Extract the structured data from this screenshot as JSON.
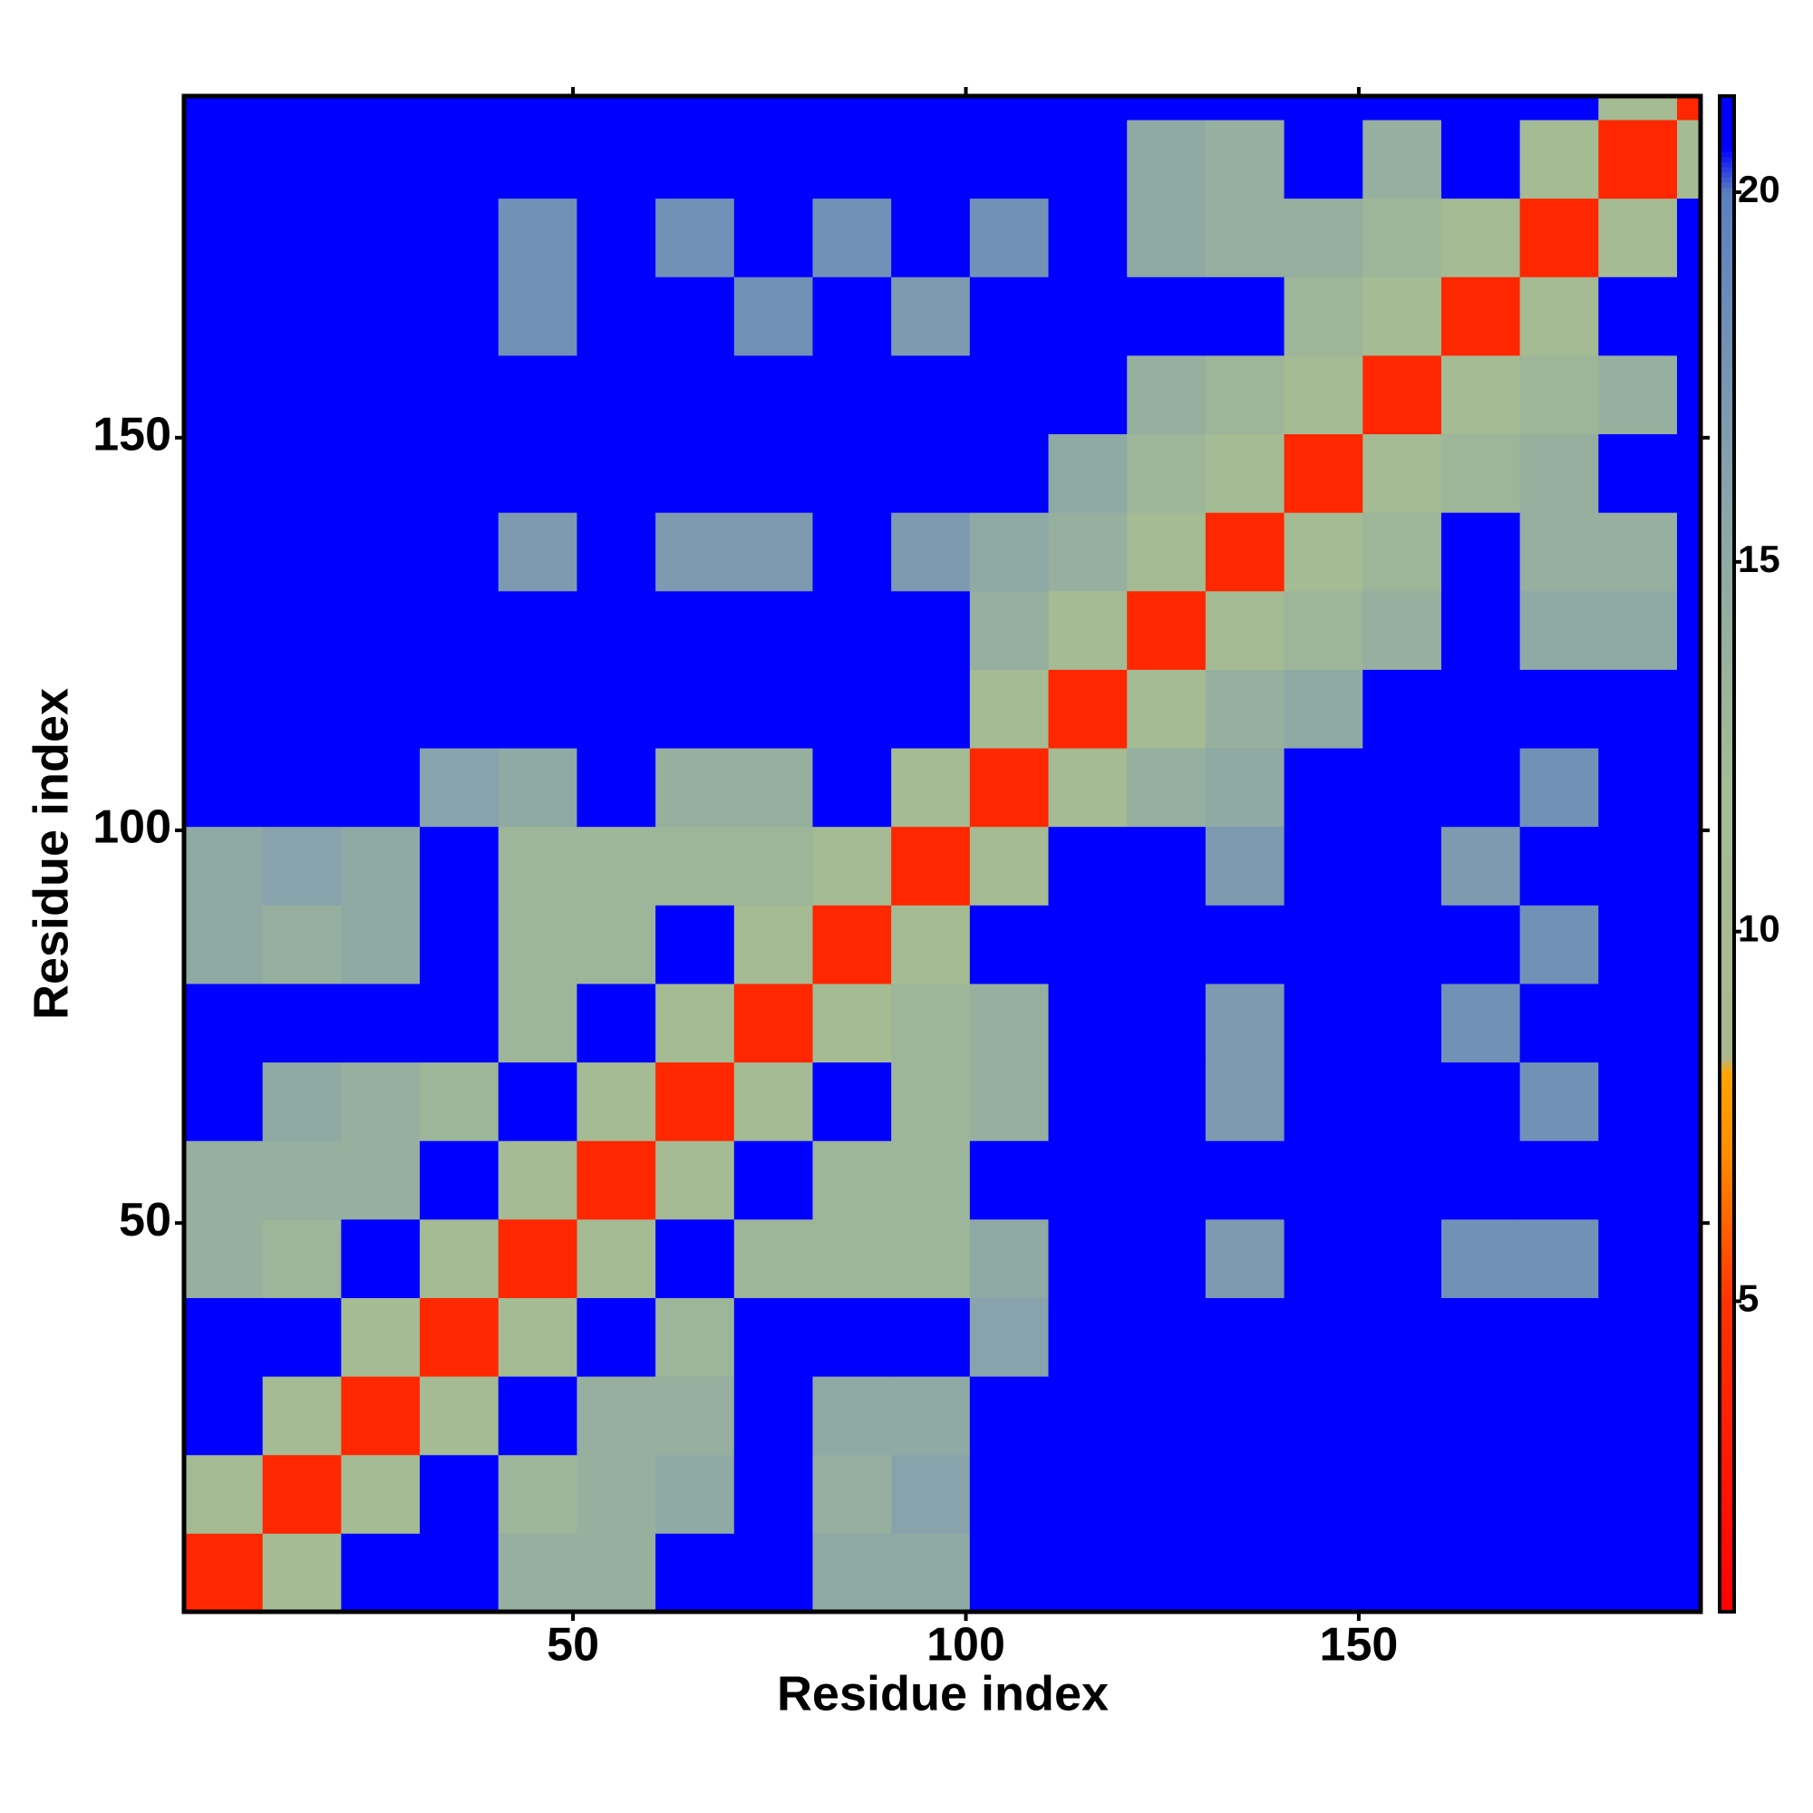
{
  "chart_data": {
    "type": "heatmap",
    "xlabel": "Residue index",
    "ylabel": "Residue index",
    "x_edges": [
      0.5,
      10.5,
      20.5,
      30.5,
      40.5,
      50.5,
      60.5,
      70.5,
      80.5,
      90.5,
      100.5,
      110.5,
      120.5,
      130.5,
      140.5,
      150.5,
      160.5,
      170.5,
      180.5,
      190.5,
      193.5
    ],
    "y_edges": [
      0.5,
      10.5,
      20.5,
      30.5,
      40.5,
      50.5,
      60.5,
      70.5,
      80.5,
      90.5,
      100.5,
      110.5,
      120.5,
      130.5,
      140.5,
      150.5,
      160.5,
      170.5,
      180.5,
      190.5,
      193.5
    ],
    "z": [
      [
        4,
        12,
        21,
        21,
        14,
        14,
        21,
        21,
        15,
        15,
        21,
        21,
        21,
        21,
        21,
        21,
        21,
        21,
        21,
        21
      ],
      [
        12,
        4,
        12,
        21,
        13,
        14,
        15,
        21,
        14,
        16,
        21,
        21,
        21,
        21,
        21,
        21,
        21,
        21,
        21,
        21
      ],
      [
        21,
        12,
        4,
        12,
        21,
        14,
        14,
        21,
        15,
        15,
        21,
        21,
        21,
        21,
        21,
        21,
        21,
        21,
        21,
        21
      ],
      [
        21,
        21,
        12,
        4,
        12,
        21,
        13,
        21,
        21,
        21,
        16,
        21,
        21,
        21,
        21,
        21,
        21,
        21,
        21,
        21
      ],
      [
        14,
        13,
        21,
        12,
        4,
        12,
        21,
        13,
        13,
        13,
        15,
        21,
        21,
        17,
        21,
        21,
        18,
        18,
        21,
        21
      ],
      [
        14,
        14,
        14,
        21,
        12,
        4,
        12,
        21,
        13,
        13,
        21,
        21,
        21,
        21,
        21,
        21,
        21,
        21,
        21,
        21
      ],
      [
        21,
        15,
        14,
        13,
        21,
        12,
        4,
        12,
        21,
        13,
        14,
        21,
        21,
        17,
        21,
        21,
        21,
        18,
        21,
        21
      ],
      [
        21,
        21,
        21,
        21,
        13,
        21,
        12,
        4,
        12,
        13,
        14,
        21,
        21,
        17,
        21,
        21,
        18,
        21,
        21,
        21
      ],
      [
        15,
        14,
        15,
        21,
        13,
        13,
        21,
        12,
        4,
        12,
        21,
        21,
        21,
        21,
        21,
        21,
        21,
        18,
        21,
        21
      ],
      [
        15,
        16,
        15,
        21,
        13,
        13,
        13,
        13,
        12,
        4,
        12,
        21,
        21,
        17,
        21,
        21,
        17,
        21,
        21,
        21
      ],
      [
        21,
        21,
        21,
        16,
        15,
        21,
        14,
        14,
        21,
        12,
        4,
        12,
        14,
        15,
        21,
        21,
        21,
        18,
        21,
        21
      ],
      [
        21,
        21,
        21,
        21,
        21,
        21,
        21,
        21,
        21,
        21,
        12,
        4,
        12,
        14,
        15,
        21,
        21,
        21,
        21,
        21
      ],
      [
        21,
        21,
        21,
        21,
        21,
        21,
        21,
        21,
        21,
        21,
        14,
        12,
        4,
        12,
        13,
        14,
        21,
        15,
        15,
        21
      ],
      [
        21,
        21,
        21,
        21,
        17,
        21,
        17,
        17,
        21,
        17,
        15,
        14,
        12,
        4,
        12,
        13,
        21,
        14,
        14,
        21
      ],
      [
        21,
        21,
        21,
        21,
        21,
        21,
        21,
        21,
        21,
        21,
        21,
        15,
        13,
        12,
        4,
        12,
        13,
        14,
        21,
        21
      ],
      [
        21,
        21,
        21,
        21,
        21,
        21,
        21,
        21,
        21,
        21,
        21,
        21,
        14,
        13,
        12,
        4,
        12,
        13,
        14,
        21
      ],
      [
        21,
        21,
        21,
        21,
        18,
        21,
        21,
        18,
        21,
        17,
        21,
        21,
        21,
        21,
        13,
        12,
        4,
        12,
        21,
        21
      ],
      [
        21,
        21,
        21,
        21,
        18,
        21,
        18,
        21,
        18,
        21,
        18,
        21,
        15,
        14,
        14,
        13,
        12,
        4,
        12,
        21
      ],
      [
        21,
        21,
        21,
        21,
        21,
        21,
        21,
        21,
        21,
        21,
        21,
        21,
        15,
        14,
        21,
        14,
        21,
        12,
        4,
        12
      ],
      [
        21,
        21,
        21,
        21,
        21,
        21,
        21,
        21,
        21,
        21,
        21,
        21,
        21,
        21,
        21,
        21,
        21,
        21,
        12,
        4
      ]
    ],
    "xlim": [
      0.5,
      193.5
    ],
    "ylim": [
      0.5,
      193.5
    ],
    "xticks": [
      50,
      100,
      150
    ],
    "yticks": [
      50,
      100,
      150
    ],
    "clim": [
      0.8,
      21.3
    ],
    "cticks": [
      5,
      10,
      15,
      20
    ],
    "colormap": [
      [
        0.8,
        "#ff0000"
      ],
      [
        5,
        "#ff3300"
      ],
      [
        7,
        "#ff8c00"
      ],
      [
        8.1,
        "#ffa500"
      ],
      [
        8.3,
        "#a9b98f"
      ],
      [
        12,
        "#a4bb93"
      ],
      [
        16,
        "#88a3ab"
      ],
      [
        20,
        "#5a7fc0"
      ],
      [
        20.6,
        "#0000ff"
      ],
      [
        21.3,
        "#0000ff"
      ]
    ]
  }
}
